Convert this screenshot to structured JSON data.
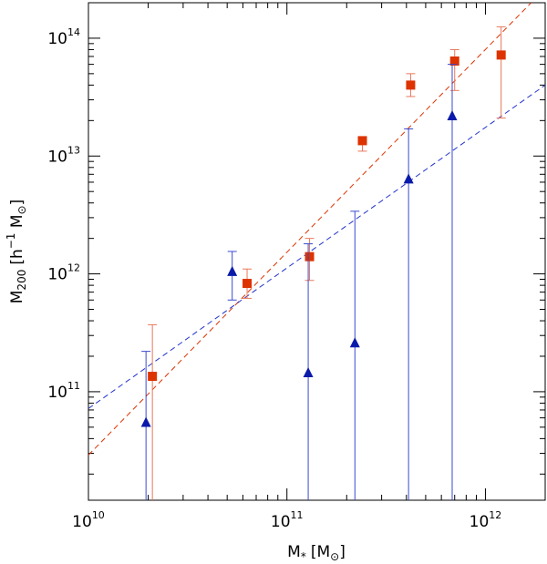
{
  "chart_data": {
    "type": "scatter",
    "xscale": "log",
    "yscale": "log",
    "xlim": [
      10000000000,
      2000000000000
    ],
    "ylim": [
      12000000000,
      200000000000000
    ],
    "xlabel": {
      "main": "M",
      "sub": "*",
      "unit": "[M",
      "unit_sub": "⊙",
      "close": "]"
    },
    "ylabel": {
      "main": "M",
      "sub": "200",
      "unit": "[h",
      "exp": "−1",
      "unit2": " M",
      "unit_sub": "⊙",
      "close": "]"
    },
    "xticks": [
      {
        "value": 10000000000,
        "base": "10",
        "exp": "10"
      },
      {
        "value": 100000000000,
        "base": "10",
        "exp": "11"
      },
      {
        "value": 1000000000000,
        "base": "10",
        "exp": "12"
      }
    ],
    "yticks": [
      {
        "value": 100000000000,
        "base": "10",
        "exp": "11"
      },
      {
        "value": 1000000000000,
        "base": "10",
        "exp": "12"
      },
      {
        "value": 10000000000000,
        "base": "10",
        "exp": "13"
      },
      {
        "value": 100000000000000,
        "base": "10",
        "exp": "14"
      }
    ],
    "series": [
      {
        "name": "red squares",
        "marker": "square",
        "color": "#dd3300",
        "errcolor": "#e8785a",
        "points": [
          {
            "x": 21000000000,
            "y": 135000000000,
            "ylo": 12000000000,
            "yhi": 370000000000
          },
          {
            "x": 63000000000,
            "y": 830000000000,
            "ylo": 620000000000,
            "yhi": 1100000000000
          },
          {
            "x": 130000000000,
            "y": 1400000000000,
            "ylo": 880000000000,
            "yhi": 2000000000000
          },
          {
            "x": 240000000000,
            "y": 13500000000000,
            "ylo": 11000000000000,
            "yhi": 14000000000000
          },
          {
            "x": 420000000000,
            "y": 40000000000000,
            "ylo": 32000000000000,
            "yhi": 50000000000000
          },
          {
            "x": 700000000000,
            "y": 64000000000000,
            "ylo": 36000000000000,
            "yhi": 80000000000000
          },
          {
            "x": 1200000000000,
            "y": 72000000000000,
            "ylo": 21000000000000,
            "yhi": 125000000000000
          }
        ]
      },
      {
        "name": "blue triangles",
        "marker": "triangle",
        "color": "#0a1aaa",
        "errcolor": "#3a4ad0",
        "points": [
          {
            "x": 19500000000,
            "y": 55000000000,
            "ylo": 12000000000,
            "yhi": 220000000000
          },
          {
            "x": 53000000000,
            "y": 1050000000000,
            "ylo": 600000000000,
            "yhi": 1550000000000
          },
          {
            "x": 128000000000,
            "y": 145000000000,
            "ylo": 12000000000,
            "yhi": 1800000000000
          },
          {
            "x": 220000000000,
            "y": 260000000000,
            "ylo": 12000000000,
            "yhi": 3400000000000
          },
          {
            "x": 410000000000,
            "y": 6400000000000,
            "ylo": 12000000000,
            "yhi": 17000000000000
          },
          {
            "x": 680000000000,
            "y": 22000000000000,
            "ylo": 12000000000,
            "yhi": 60000000000000
          }
        ]
      }
    ],
    "fits": [
      {
        "name": "red fit",
        "color": "#dd3300",
        "x": [
          10000000000,
          1700000000000
        ],
        "y": [
          29000000000,
          200000000000000
        ]
      },
      {
        "name": "blue fit",
        "color": "#2233cc",
        "x": [
          10000000000,
          2000000000000
        ],
        "y": [
          72000000000,
          40000000000000
        ]
      }
    ]
  }
}
